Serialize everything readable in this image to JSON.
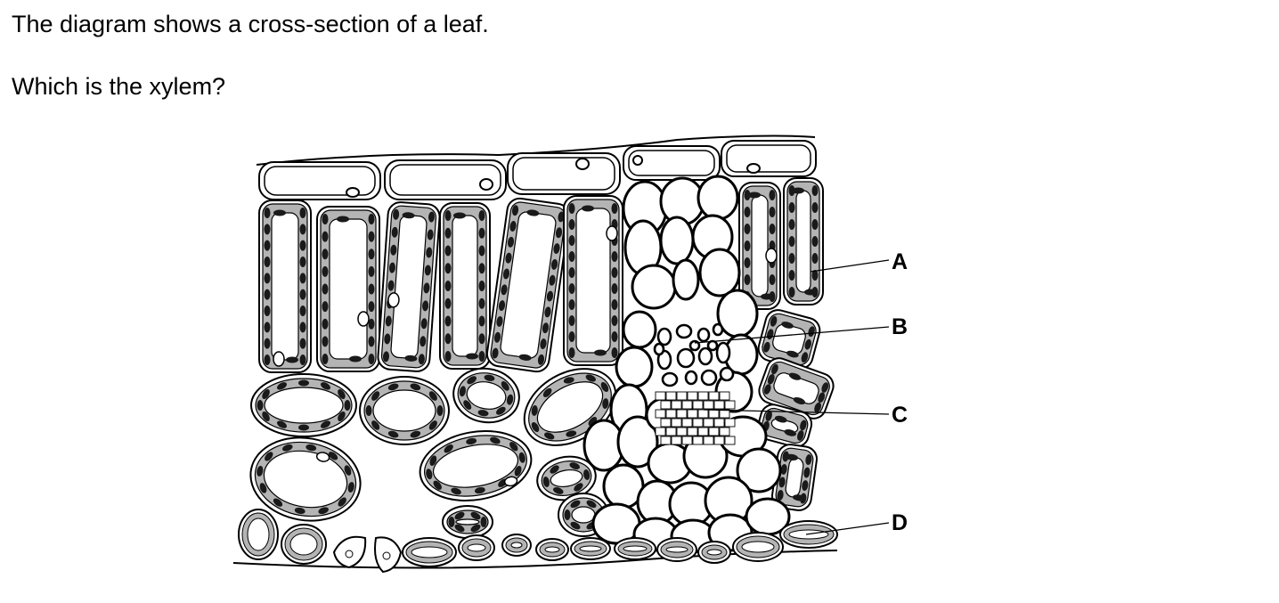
{
  "question": {
    "intro": "The diagram shows a cross-section of a leaf.",
    "prompt": "Which is the xylem?"
  },
  "diagram": {
    "labels": [
      "A",
      "B",
      "C",
      "D"
    ]
  },
  "colors": {
    "cytoplasm": "#b4b4b4",
    "chloroplast": "#1a1a1a",
    "outline": "#000000",
    "background": "#ffffff"
  }
}
